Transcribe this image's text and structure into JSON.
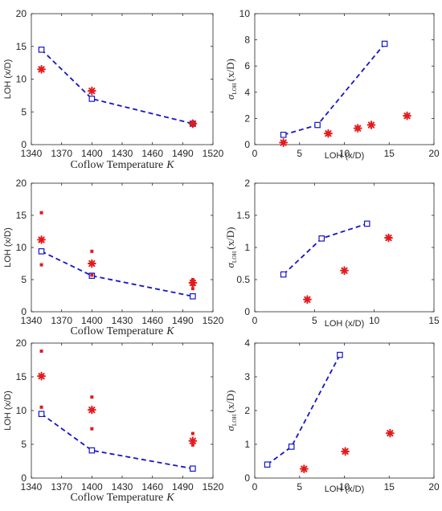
{
  "colors": {
    "model": "#1515c8",
    "experiment": "#e31a1c",
    "axis": "#262626"
  },
  "marker_names": {
    "model": "open-square",
    "experiment": "asterisk"
  },
  "chart_data": [
    {
      "id": "top-left",
      "type": "scatter",
      "xlabel": "Coflow Temperature",
      "xlabel_italic": "K",
      "ylabel": "LOH (x/D)",
      "xlim": [
        1340,
        1520
      ],
      "ylim": [
        0,
        20
      ],
      "xticks": [
        "1340",
        "1370",
        "1400",
        "1430",
        "1460",
        "1490",
        "1520"
      ],
      "yticks": [
        "0",
        "5",
        "10",
        "15",
        "20"
      ],
      "model_line": {
        "x": [
          1350,
          1400,
          1500
        ],
        "y": [
          14.5,
          7.0,
          3.2
        ]
      },
      "experiment_points": {
        "x": [
          1350,
          1400,
          1500
        ],
        "y": [
          11.5,
          8.2,
          3.2
        ],
        "large": [
          true,
          true,
          true
        ]
      }
    },
    {
      "id": "top-right",
      "type": "scatter",
      "xlabel": "LOH (x/D)",
      "ylabel_sym": "σ",
      "ylabel_sub": "LOH",
      "ylabel_tail": "(x/D)",
      "xlim": [
        0,
        20
      ],
      "ylim": [
        0,
        10
      ],
      "xticks": [
        "0",
        "5",
        "10",
        "15",
        "20"
      ],
      "yticks": [
        "0",
        "2",
        "4",
        "6",
        "8",
        "10"
      ],
      "model_line": {
        "x": [
          3.2,
          7.0,
          14.5
        ],
        "y": [
          0.75,
          1.5,
          7.7
        ]
      },
      "experiment_points": {
        "x": [
          3.2,
          8.2,
          11.5,
          13.0,
          17.0
        ],
        "y": [
          0.15,
          0.85,
          1.25,
          1.5,
          2.2
        ],
        "large": [
          true,
          true,
          true,
          true,
          true
        ]
      }
    },
    {
      "id": "middle-left",
      "type": "scatter",
      "xlabel": "Coflow Temperature",
      "xlabel_italic": "K",
      "ylabel": "LOH (x/D)",
      "xlim": [
        1340,
        1520
      ],
      "ylim": [
        0,
        20
      ],
      "xticks": [
        "1340",
        "1370",
        "1400",
        "1430",
        "1460",
        "1490",
        "1520"
      ],
      "yticks": [
        "0",
        "5",
        "10",
        "15",
        "20"
      ],
      "model_line": {
        "x": [
          1350,
          1400,
          1500
        ],
        "y": [
          9.4,
          5.6,
          2.4
        ]
      },
      "experiment_points": {
        "x": [
          1350,
          1350,
          1350,
          1400,
          1400,
          1400,
          1500,
          1500,
          1500,
          1500
        ],
        "y": [
          15.4,
          11.2,
          7.3,
          9.4,
          7.5,
          5.7,
          5.0,
          4.5,
          4.2,
          3.6
        ],
        "large": [
          false,
          true,
          false,
          false,
          true,
          false,
          false,
          true,
          false,
          false
        ]
      }
    },
    {
      "id": "middle-right",
      "type": "scatter",
      "xlabel": "LOH (x/D)",
      "ylabel_sym": "σ",
      "ylabel_sub": "LOH",
      "ylabel_tail": "(x/D)",
      "xlim": [
        0,
        15
      ],
      "ylim": [
        0,
        2
      ],
      "xticks": [
        "0",
        "5",
        "10",
        "15"
      ],
      "yticks": [
        "0",
        "0.5",
        "1",
        "1.5",
        "2"
      ],
      "model_line": {
        "x": [
          2.4,
          5.6,
          9.4
        ],
        "y": [
          0.58,
          1.14,
          1.37
        ]
      },
      "experiment_points": {
        "x": [
          4.4,
          7.5,
          11.2
        ],
        "y": [
          0.19,
          0.64,
          1.15
        ],
        "large": [
          true,
          true,
          true
        ]
      }
    },
    {
      "id": "bottom-left",
      "type": "scatter",
      "xlabel": "Coflow Temperature",
      "xlabel_italic": "K",
      "ylabel": "LOH (x/D)",
      "xlim": [
        1340,
        1520
      ],
      "ylim": [
        0,
        20
      ],
      "xticks": [
        "1340",
        "1370",
        "1400",
        "1430",
        "1460",
        "1490",
        "1520"
      ],
      "yticks": [
        "0",
        "5",
        "10",
        "15",
        "20"
      ],
      "model_line": {
        "x": [
          1350,
          1400,
          1500
        ],
        "y": [
          9.5,
          4.1,
          1.4
        ]
      },
      "experiment_points": {
        "x": [
          1350,
          1350,
          1350,
          1400,
          1400,
          1400,
          1500,
          1500,
          1500
        ],
        "y": [
          18.8,
          15.1,
          10.5,
          12.0,
          10.1,
          7.3,
          6.6,
          5.5,
          4.9
        ],
        "large": [
          false,
          true,
          false,
          false,
          true,
          false,
          false,
          true,
          false
        ]
      }
    },
    {
      "id": "bottom-right",
      "type": "scatter",
      "xlabel": "LOH (x/D)",
      "ylabel_sym": "σ",
      "ylabel_sub": "LOH",
      "ylabel_tail": "(x/D)",
      "xlim": [
        0,
        20
      ],
      "ylim": [
        0,
        4
      ],
      "xticks": [
        "0",
        "5",
        "10",
        "15",
        "20"
      ],
      "yticks": [
        "0",
        "1",
        "2",
        "3",
        "4"
      ],
      "model_line": {
        "x": [
          1.4,
          4.1,
          9.5
        ],
        "y": [
          0.4,
          0.93,
          3.65
        ]
      },
      "experiment_points": {
        "x": [
          5.5,
          10.1,
          15.1
        ],
        "y": [
          0.27,
          0.79,
          1.33
        ],
        "large": [
          true,
          true,
          true
        ]
      }
    }
  ]
}
